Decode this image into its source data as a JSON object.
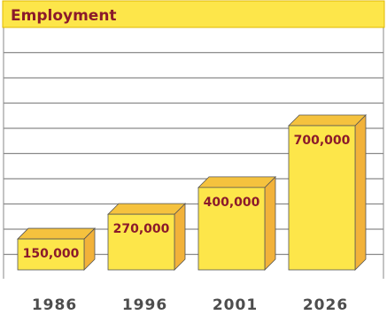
{
  "chart_data": {
    "type": "bar",
    "title": "Employment",
    "categories": [
      "1986",
      "1996",
      "2001",
      "2026"
    ],
    "values": [
      150000,
      270000,
      400000,
      700000
    ],
    "value_labels": [
      "150,000",
      "270,000",
      "400,000",
      "700,000"
    ],
    "xlabel": "",
    "ylabel": "",
    "grid": true,
    "legend": "none"
  },
  "colors": {
    "title_band": "#fde64a",
    "title_text": "#8b1a2b",
    "bar_front": "#fde64a",
    "bar_side": "#f2b23a",
    "bar_top": "#f5c23e",
    "bar_outline": "#555555",
    "grid": "#8a8a8a",
    "tick_text": "#4d4d4d",
    "value_text": "#8b1a2b"
  }
}
